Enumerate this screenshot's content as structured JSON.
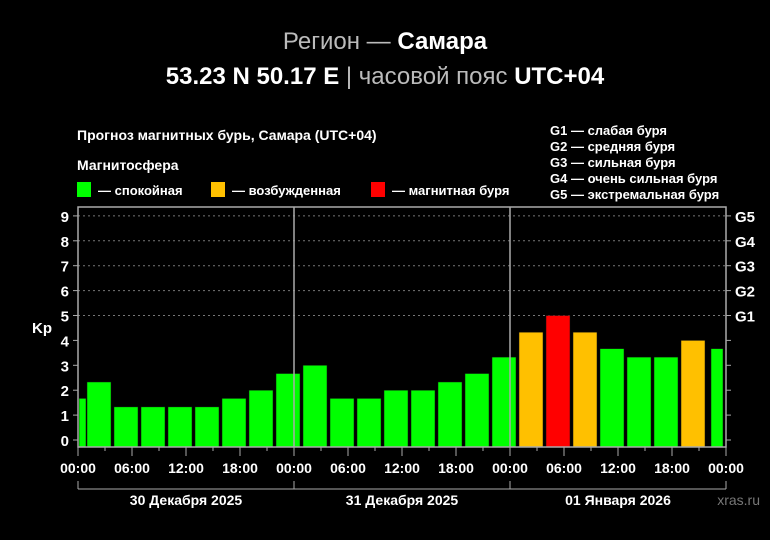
{
  "header": {
    "region_label": "Регион —",
    "region_name": "Самара",
    "coords": "53.23 N 50.17 E",
    "separator": "|",
    "tz_label": "часовой пояс",
    "tz_value": "UTC+04"
  },
  "chart_data": {
    "type": "bar",
    "title": "Прогноз магнитных бурь, Самара (UTC+04)",
    "legend_title": "Магнитосфера",
    "legend": [
      {
        "label": "— спокойная",
        "color": "#00ff00"
      },
      {
        "label": "— возбужденная",
        "color": "#ffc000"
      },
      {
        "label": "— магнитная буря",
        "color": "#ff0000"
      }
    ],
    "g_legend": [
      "G1 — слабая буря",
      "G2 — средняя буря",
      "G3 — сильная буря",
      "G4 — очень сильная буря",
      "G5 — экстремальная буря"
    ],
    "ylabel": "Kp",
    "ylim": [
      0,
      9
    ],
    "yticks": [
      "0",
      "1",
      "2",
      "3",
      "4",
      "5",
      "6",
      "7",
      "8",
      "9"
    ],
    "right_ticks": [
      {
        "kp": 5,
        "label": "G1"
      },
      {
        "kp": 6,
        "label": "G2"
      },
      {
        "kp": 7,
        "label": "G3"
      },
      {
        "kp": 8,
        "label": "G4"
      },
      {
        "kp": 9,
        "label": "G5"
      }
    ],
    "xticks": [
      "00:00",
      "06:00",
      "12:00",
      "18:00",
      "00:00",
      "06:00",
      "12:00",
      "18:00",
      "00:00",
      "06:00",
      "12:00",
      "18:00",
      "00:00"
    ],
    "days": [
      "30 Декабря 2025",
      "31 Декабря 2025",
      "01 Января 2026"
    ],
    "grid": "dotted horizontal at 5–9",
    "values": [
      1.67,
      2.33,
      1.33,
      1.33,
      1.33,
      1.33,
      1.67,
      2.0,
      2.67,
      3.0,
      1.67,
      1.67,
      2.0,
      2.0,
      2.33,
      2.67,
      3.33,
      4.33,
      5.0,
      4.33,
      3.67,
      3.33,
      3.33,
      4.0,
      3.67
    ],
    "colors": {
      "quiet": "#00ff00",
      "active": "#ffc000",
      "storm": "#ff0000"
    },
    "watermark": "xras.ru"
  }
}
